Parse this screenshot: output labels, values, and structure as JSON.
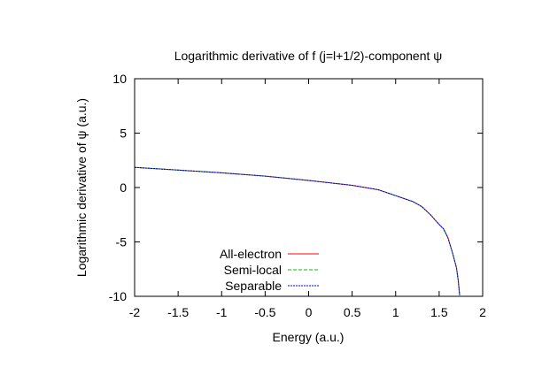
{
  "chart_data": {
    "type": "line",
    "title": "Logarithmic derivative of f (j=l+1/2)-component ψ",
    "xlabel": "Energy (a.u.)",
    "ylabel": "Logarithmic derivative of ψ (a.u.)",
    "xlim": [
      -2,
      2
    ],
    "ylim": [
      -10,
      10
    ],
    "xticks": [
      -2,
      -1.5,
      -1,
      -0.5,
      0,
      0.5,
      1,
      1.5,
      2
    ],
    "yticks": [
      -10,
      -5,
      0,
      5,
      10
    ],
    "grid": false,
    "legend": "bottom-left",
    "x": [
      -2,
      -1.5,
      -1,
      -0.5,
      0,
      0.5,
      0.8,
      1.0,
      1.2,
      1.3,
      1.4,
      1.5,
      1.55,
      1.6,
      1.65,
      1.7,
      1.72,
      1.735
    ],
    "series": [
      {
        "name": "All-electron",
        "color": "#ff0000",
        "values": [
          1.85,
          1.6,
          1.35,
          1.05,
          0.65,
          0.2,
          -0.2,
          -0.75,
          -1.3,
          -1.75,
          -2.5,
          -3.4,
          -3.8,
          -4.6,
          -5.9,
          -7.4,
          -8.6,
          -9.9
        ]
      },
      {
        "name": "Semi-local",
        "color": "#00c000",
        "values": [
          1.85,
          1.6,
          1.35,
          1.05,
          0.65,
          0.2,
          -0.2,
          -0.75,
          -1.3,
          -1.75,
          -2.5,
          -3.4,
          -3.8,
          -4.6,
          -5.9,
          -7.4,
          -8.6,
          -9.9
        ]
      },
      {
        "name": "Separable",
        "color": "#0000ff",
        "values": [
          1.85,
          1.6,
          1.35,
          1.05,
          0.65,
          0.2,
          -0.2,
          -0.75,
          -1.3,
          -1.75,
          -2.5,
          -3.4,
          -3.8,
          -4.6,
          -5.9,
          -7.4,
          -8.6,
          -9.9
        ]
      }
    ]
  }
}
